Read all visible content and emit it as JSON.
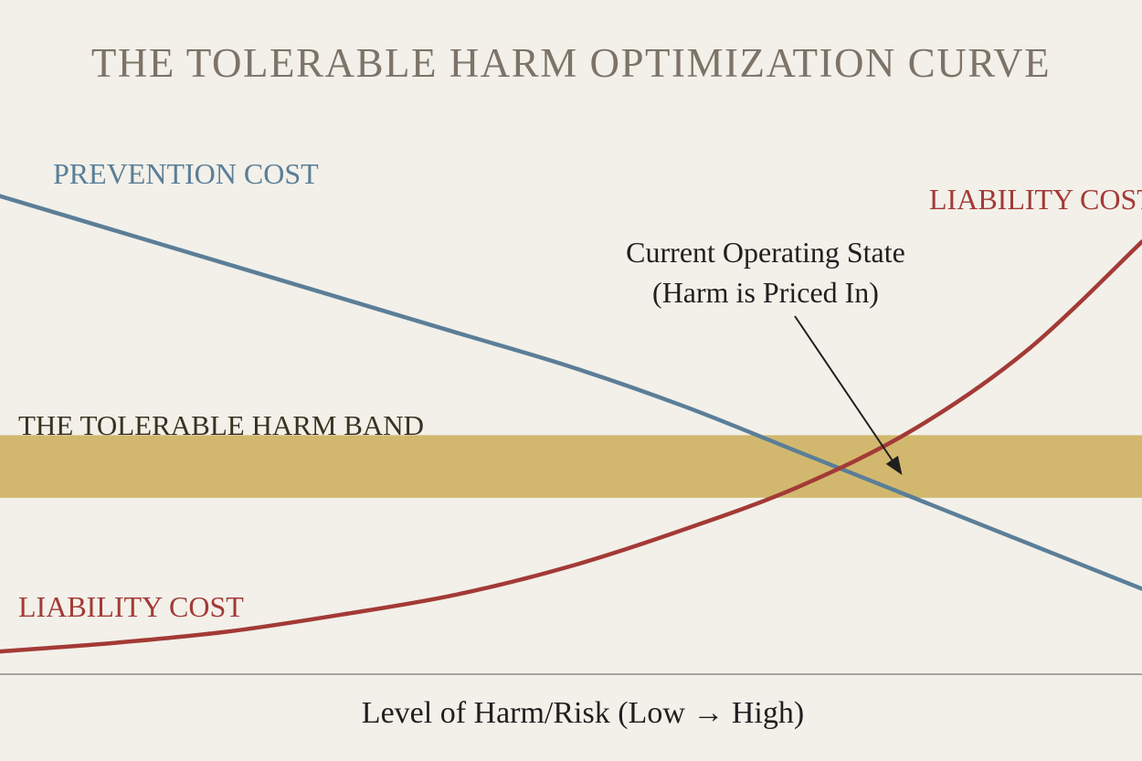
{
  "colors": {
    "background": "#f2f0e9",
    "title": "#7d7367",
    "prevention": "#5b7e98",
    "liability": "#a33a36",
    "band": "#d2b86e",
    "band_text": "#3a3120",
    "annotation": "#1f1f1f",
    "axis": "#8a8a8a"
  },
  "chart_data": {
    "type": "line",
    "title": "THE TOLERABLE HARM OPTIMIZATION CURVE",
    "xlabel": "Level of Harm/Risk (Low → High)",
    "ylabel": "",
    "xlim": [
      0,
      100
    ],
    "ylim": [
      0,
      100
    ],
    "grid": false,
    "series": [
      {
        "name": "PREVENTION COST",
        "end_label": "",
        "color": "#5b7e98",
        "x": [
          0,
          10,
          20,
          30,
          40,
          50,
          60,
          70,
          80,
          90,
          100
        ],
        "y": [
          84,
          78,
          72,
          66,
          60,
          54,
          47,
          39,
          31,
          23,
          15
        ]
      },
      {
        "name": "LIABILITY COST",
        "end_label": "LIABILITY COST",
        "color": "#a33a36",
        "x": [
          0,
          10,
          20,
          30,
          40,
          50,
          60,
          70,
          80,
          90,
          100
        ],
        "y": [
          4,
          5.5,
          7.5,
          10.5,
          14,
          19,
          25.5,
          33,
          43,
          57,
          76
        ]
      }
    ],
    "band": {
      "label": "THE TOLERABLE HARM BAND",
      "y_range": [
        31,
        42
      ]
    },
    "annotation": {
      "lines": [
        "Current Operating State",
        "(Harm is Priced In)"
      ],
      "target_x": 79,
      "target_y": 35
    }
  }
}
